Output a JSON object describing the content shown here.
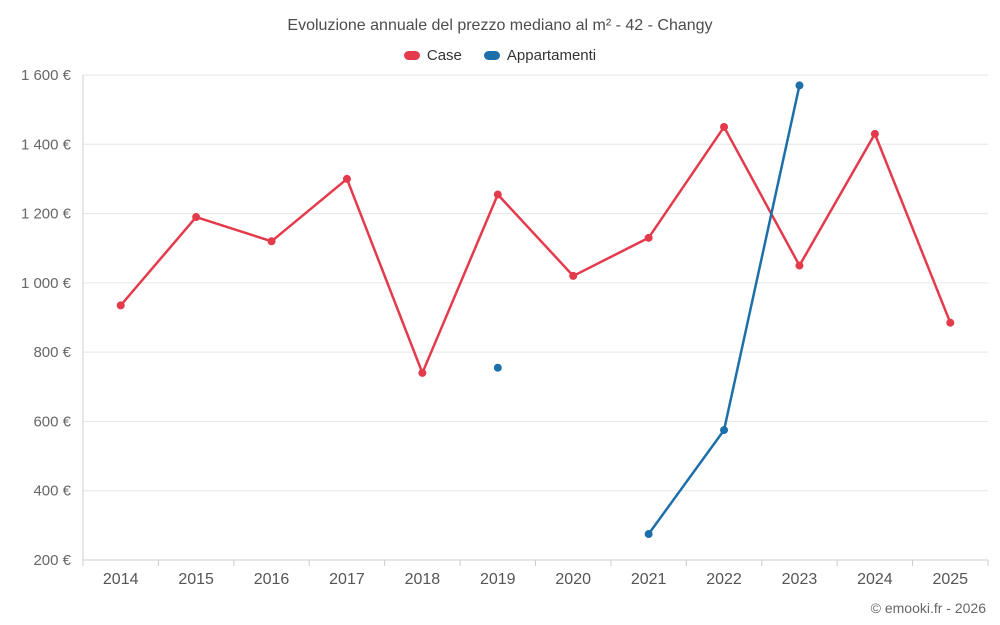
{
  "chart_data": {
    "type": "line",
    "title": "Evoluzione annuale del prezzo mediano al m² - 42 - Changy",
    "categories": [
      "2014",
      "2015",
      "2016",
      "2017",
      "2018",
      "2019",
      "2020",
      "2021",
      "2022",
      "2023",
      "2024",
      "2025"
    ],
    "series": [
      {
        "name": "Case",
        "color": "#e43b4c",
        "values": [
          935,
          1190,
          1120,
          1300,
          740,
          1255,
          1020,
          1130,
          1450,
          1050,
          1430,
          885
        ]
      },
      {
        "name": "Appartamenti",
        "color": "#1d6fa9",
        "values": [
          null,
          null,
          null,
          null,
          null,
          755,
          null,
          275,
          575,
          1570,
          null,
          null
        ]
      }
    ],
    "ylim": [
      200,
      1600
    ],
    "ytick_step": 200,
    "y_unit": "€",
    "xlabel": "",
    "ylabel": "",
    "grid": true,
    "legend_position": "top"
  },
  "footer": {
    "credit": "© emooki.fr - 2026"
  }
}
